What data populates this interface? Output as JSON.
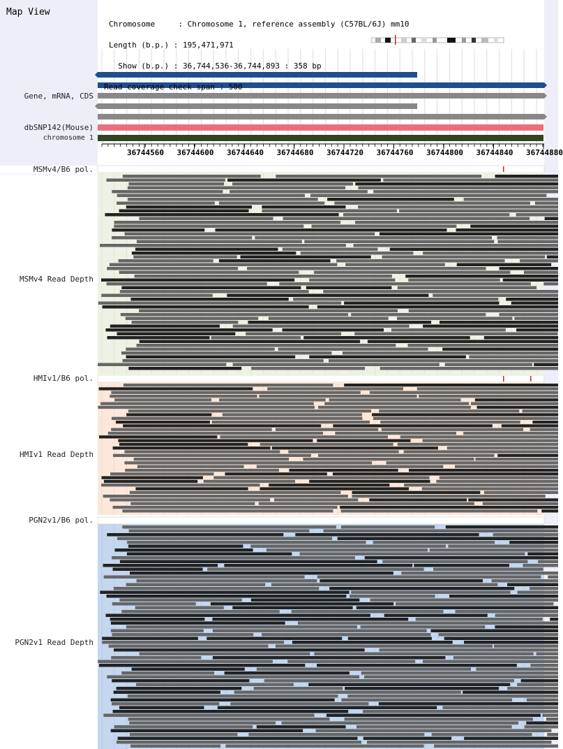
{
  "map_title": "Map View",
  "info": {
    "chromosome_line": "Chromosome     : Chromosome 1, reference assembly (C57BL/6J) mm10",
    "length_line": "Length (b.p.) : 195,471,971",
    "show_line": "  Show (b.p.) : 36,744,536-36,744,893 : 358 bp",
    "span_line": "Read coverage check span : 500"
  },
  "track_labels": {
    "gene": "Gene, mRNA, CDS",
    "dbsnp": "dbSNP142(Mouse)",
    "chromosome": "chromosome 1",
    "msm_pol": "MSMv4/B6 pol.",
    "msm_depth": "MSMv4 Read Depth",
    "hmi_pol": "HMIv1/B6 pol.",
    "hmi_depth": "HMIv1 Read Depth",
    "pgn_pol": "PGN2v1/B6 pol.",
    "pgn_depth": "PGN2v1 Read Depth"
  },
  "axis": {
    "ticks": [
      "36744560",
      "36744600",
      "36744640",
      "36744680",
      "36744720",
      "36744760",
      "36744800",
      "36744840",
      "36744880"
    ]
  },
  "colors": {
    "sidebar": "#eeeef8",
    "gene_blue": "#1f4e8c",
    "gene_gray": "#888888",
    "dbsnp": "#e8707c",
    "chrom": "#334422",
    "msm_bg": "#eef2e4",
    "hmi_bg": "#fbe8da",
    "pgn_bg": "#c4d7ee",
    "read_dark": "#222222",
    "read_gray": "#666666",
    "marker": "#cc2222"
  }
}
